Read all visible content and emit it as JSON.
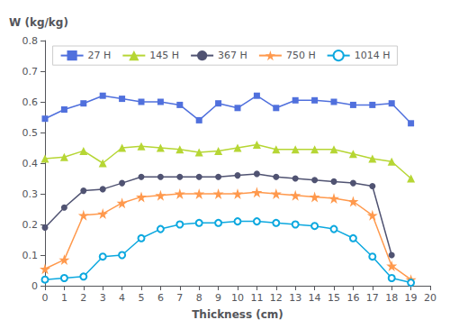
{
  "chart_data": {
    "type": "line",
    "xlabel": "Thickness (cm)",
    "ylabel": "W (kg/kg)",
    "x": [
      0,
      1,
      2,
      3,
      4,
      5,
      6,
      7,
      8,
      9,
      10,
      11,
      12,
      13,
      14,
      15,
      16,
      17,
      18,
      19
    ],
    "series": [
      {
        "name": "27 H",
        "marker": "square",
        "values": [
          0.545,
          0.575,
          0.595,
          0.62,
          0.61,
          0.6,
          0.6,
          0.59,
          0.54,
          0.595,
          0.58,
          0.62,
          0.58,
          0.605,
          0.605,
          0.6,
          0.59,
          0.59,
          0.595,
          0.53
        ]
      },
      {
        "name": "145 H",
        "marker": "triangle",
        "values": [
          0.415,
          0.42,
          0.44,
          0.4,
          0.45,
          0.455,
          0.45,
          0.445,
          0.435,
          0.44,
          0.45,
          0.46,
          0.445,
          0.445,
          0.445,
          0.445,
          0.43,
          0.415,
          0.405,
          0.35
        ]
      },
      {
        "name": "367 H",
        "marker": "circle",
        "values": [
          0.19,
          0.255,
          0.31,
          0.315,
          0.335,
          0.355,
          0.355,
          0.355,
          0.355,
          0.355,
          0.36,
          0.365,
          0.355,
          0.35,
          0.345,
          0.34,
          0.335,
          0.325,
          0.1,
          null
        ]
      },
      {
        "name": "750 H",
        "marker": "star",
        "values": [
          0.055,
          0.085,
          0.23,
          0.235,
          0.27,
          0.29,
          0.295,
          0.3,
          0.3,
          0.3,
          0.3,
          0.305,
          0.3,
          0.295,
          0.29,
          0.285,
          0.275,
          0.23,
          0.065,
          0.02
        ]
      },
      {
        "name": "1014 H",
        "marker": "open_circle",
        "values": [
          0.02,
          0.025,
          0.03,
          0.095,
          0.1,
          0.155,
          0.185,
          0.2,
          0.205,
          0.205,
          0.21,
          0.21,
          0.205,
          0.2,
          0.195,
          0.185,
          0.155,
          0.095,
          0.025,
          0.01
        ]
      }
    ],
    "xlim": [
      0,
      20
    ],
    "ylim": [
      0,
      0.8
    ],
    "xticks": [
      0,
      1,
      2,
      3,
      4,
      5,
      6,
      7,
      8,
      9,
      10,
      11,
      12,
      13,
      14,
      15,
      16,
      17,
      18,
      19,
      20
    ],
    "yticks": [
      0,
      0.1,
      0.2,
      0.3,
      0.4,
      0.5,
      0.6,
      0.7,
      0.8
    ],
    "grid": false,
    "legend": "top"
  }
}
